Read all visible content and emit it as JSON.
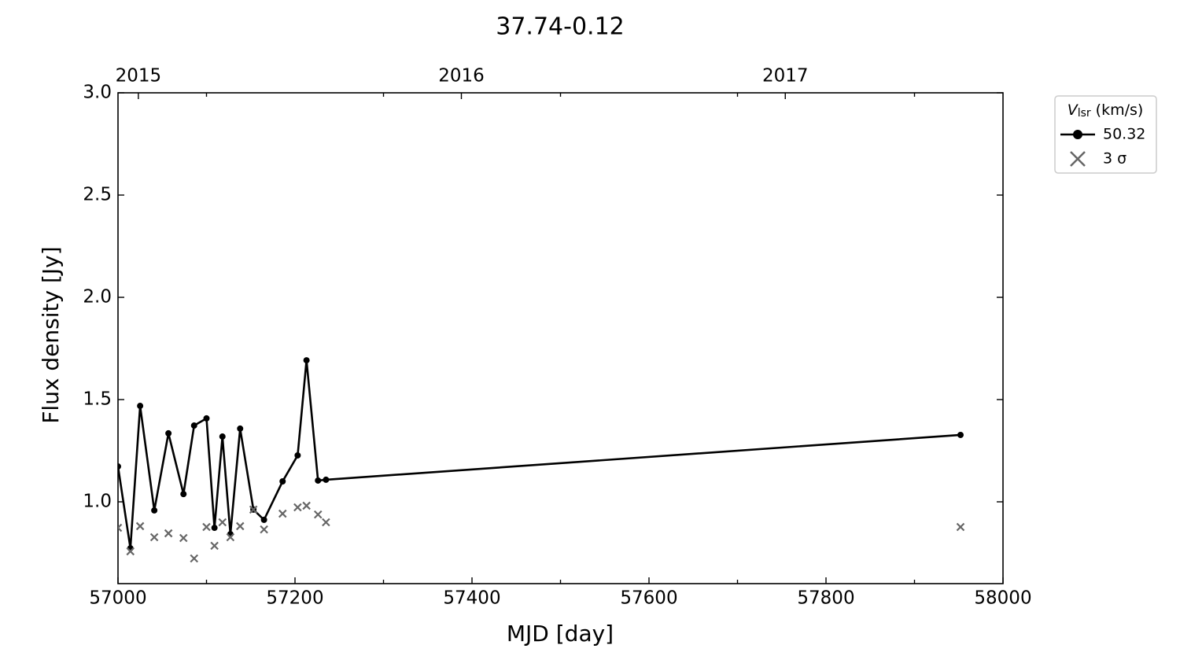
{
  "chart_data": {
    "type": "line",
    "title": "37.74-0.12",
    "xlabel": "MJD [day]",
    "ylabel": "Flux density [Jy]",
    "x": [
      57000,
      57014,
      57025,
      57041,
      57057,
      57074,
      57086,
      57100,
      57109,
      57118,
      57127,
      57138,
      57153,
      57165,
      57186,
      57203,
      57213,
      57226,
      57235,
      57952
    ],
    "series": [
      {
        "name": "50.32",
        "color": "#000000",
        "marker": "o",
        "linestyle": "solid",
        "values": [
          1.173,
          0.773,
          1.469,
          0.958,
          1.335,
          1.038,
          1.373,
          1.408,
          0.873,
          1.319,
          0.842,
          1.358,
          0.962,
          0.912,
          1.1,
          1.227,
          1.692,
          1.104,
          1.108,
          1.327
        ]
      },
      {
        "name": "3 σ",
        "color": "#666666",
        "marker": "x",
        "linestyle": "none",
        "values": [
          0.873,
          0.758,
          0.881,
          0.827,
          0.846,
          0.823,
          0.723,
          0.877,
          0.785,
          0.9,
          0.827,
          0.881,
          0.962,
          0.865,
          0.942,
          0.973,
          0.981,
          0.938,
          0.9,
          0.877
        ]
      }
    ],
    "xlim": [
      57000,
      58000
    ],
    "xticks": [
      57000,
      57200,
      57400,
      57600,
      57800,
      58000
    ],
    "xminorticks": [
      57100,
      57300,
      57500,
      57700,
      57900
    ],
    "x2ticks": [
      {
        "value": 57023,
        "label": "2015"
      },
      {
        "value": 57388,
        "label": "2016"
      },
      {
        "value": 57754,
        "label": "2017"
      }
    ],
    "ylim": [
      0.6,
      3.0
    ],
    "yticks": [
      {
        "value": 1.0,
        "label": "1.0"
      },
      {
        "value": 1.5,
        "label": "1.5"
      },
      {
        "value": 2.0,
        "label": "2.0"
      },
      {
        "value": 2.5,
        "label": "2.5"
      },
      {
        "value": 3.0,
        "label": "3.0"
      }
    ],
    "legend_title": {
      "symbol": "V",
      "subscript": "lsr",
      "unit": "(km/s)"
    },
    "legend_loc": "upper right outside"
  }
}
